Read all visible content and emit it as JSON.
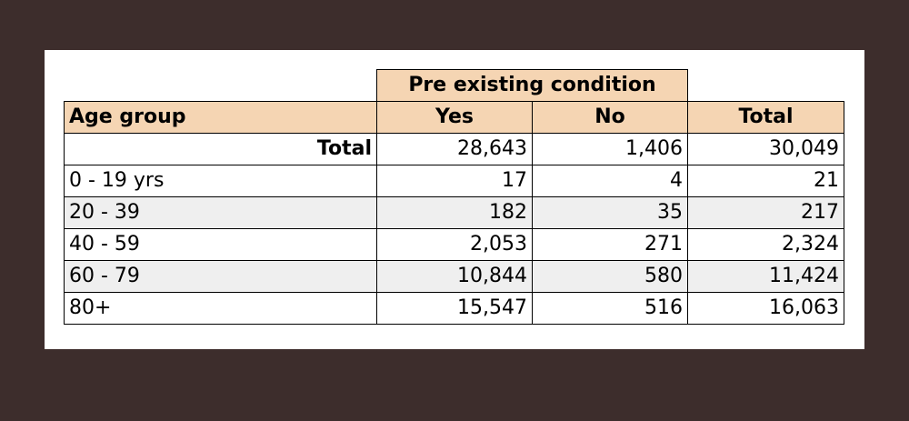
{
  "table": {
    "group_header": "Pre existing condition",
    "columns": [
      "Age group",
      "Yes",
      "No",
      "Total"
    ],
    "rows": [
      {
        "label": "Total",
        "yes": "28,643",
        "no": "1,406",
        "total": "30,049"
      },
      {
        "label": "0 - 19 yrs",
        "yes": "17",
        "no": "4",
        "total": "21"
      },
      {
        "label": "20 - 39",
        "yes": "182",
        "no": "35",
        "total": "217"
      },
      {
        "label": "40 - 59",
        "yes": "2,053",
        "no": "271",
        "total": "2,324"
      },
      {
        "label": "60 - 79",
        "yes": "10,844",
        "no": "580",
        "total": "11,424"
      },
      {
        "label": "80+",
        "yes": "15,547",
        "no": "516",
        "total": "16,063"
      }
    ]
  },
  "colors": {
    "header_fill": "#f5d5b3",
    "page_background": "#3d2d2c",
    "row_shade": "#efefef"
  }
}
